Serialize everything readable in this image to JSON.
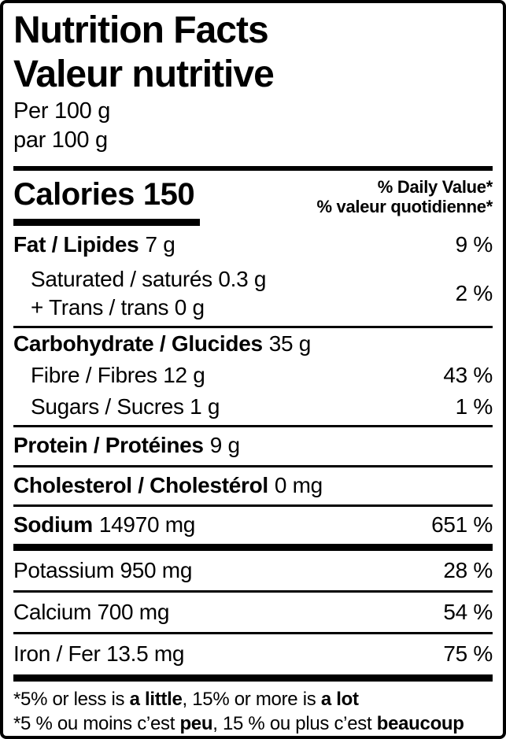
{
  "label": {
    "title_en": "Nutrition Facts",
    "title_fr": "Valeur nutritive",
    "serving_en": "Per 100 g",
    "serving_fr": "par 100 g",
    "calories_label": "Calories",
    "calories_value": "150",
    "daily_value_en": "% Daily Value*",
    "daily_value_fr": "% valeur quotidienne*",
    "colors": {
      "ink": "#000000",
      "background": "#ffffff"
    }
  },
  "nutrients": {
    "fat": {
      "label": "Fat / Lipides",
      "amount": "7 g",
      "pct": "9 %"
    },
    "sat_trans": {
      "line1": "Saturated / saturés 0.3 g",
      "line2": "+ Trans / trans 0 g",
      "pct": "2 %"
    },
    "carbohydrate": {
      "label": "Carbohydrate / Glucides",
      "amount": "35 g"
    },
    "fibre": {
      "label": "Fibre / Fibres 12 g",
      "pct": "43 %"
    },
    "sugars": {
      "label": "Sugars / Sucres 1 g",
      "pct": "1 %"
    },
    "protein": {
      "label": "Protein / Protéines",
      "amount": "9 g"
    },
    "cholesterol": {
      "label": "Cholesterol / Cholestérol",
      "amount": "0 mg"
    },
    "sodium": {
      "label": "Sodium",
      "amount": "14970 mg",
      "pct": "651 %"
    },
    "potassium": {
      "label": "Potassium 950 mg",
      "pct": "28 %"
    },
    "calcium": {
      "label": "Calcium 700 mg",
      "pct": "54 %"
    },
    "iron": {
      "label": "Iron / Fer 13.5 mg",
      "pct": "75 %"
    }
  },
  "footnote": {
    "en": {
      "pre": "*5% or less is ",
      "bold1": "a little",
      "mid": ", 15% or more is ",
      "bold2": "a lot"
    },
    "fr": {
      "pre": "*5 % ou moins c’est ",
      "bold1": "peu",
      "mid": ", 15 % ou plus c’est ",
      "bold2": "beaucoup"
    }
  }
}
